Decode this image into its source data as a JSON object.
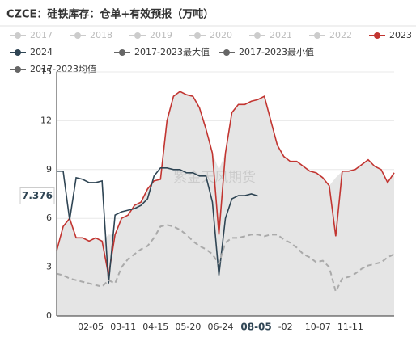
{
  "chart_data": {
    "type": "line",
    "title": "CZCE：硅铁库存：仓单+有效预报（万吨）",
    "watermark": "紫金天风期货",
    "categories": [
      null,
      null,
      null,
      null,
      null,
      "02-05",
      null,
      null,
      null,
      null,
      "03-11",
      null,
      null,
      null,
      null,
      "04-15",
      null,
      null,
      null,
      null,
      "05-20",
      null,
      null,
      null,
      null,
      "06-24",
      null,
      null,
      null,
      null,
      "08-05",
      null,
      null,
      null,
      null,
      "-02",
      null,
      null,
      null,
      null,
      "10-07",
      null,
      null,
      null,
      null,
      "11-11",
      null,
      null,
      null,
      null,
      null,
      null,
      null
    ],
    "series": [
      {
        "name": "2017",
        "color": "#cccccc",
        "visible": false
      },
      {
        "name": "2018",
        "color": "#cccccc",
        "visible": false
      },
      {
        "name": "2019",
        "color": "#cccccc",
        "visible": false
      },
      {
        "name": "2020",
        "color": "#cccccc",
        "visible": false
      },
      {
        "name": "2021",
        "color": "#cccccc",
        "visible": false
      },
      {
        "name": "2022",
        "color": "#cccccc",
        "visible": false
      },
      {
        "name": "2023",
        "color": "#c23531",
        "visible": true,
        "values": [
          4.0,
          5.5,
          6.0,
          4.8,
          4.8,
          4.6,
          4.8,
          4.6,
          2.5,
          5.0,
          6.0,
          6.2,
          6.8,
          7.0,
          7.8,
          8.3,
          8.4,
          12.0,
          13.5,
          13.8,
          13.6,
          13.5,
          12.8,
          11.5,
          10.0,
          5.0,
          10.0,
          12.5,
          13.0,
          13.0,
          13.2,
          13.3,
          13.5,
          12.0,
          10.5,
          9.8,
          9.5,
          9.5,
          9.2,
          8.9,
          8.8,
          8.5,
          8.0,
          4.9,
          8.9,
          8.9,
          9.0,
          9.3,
          9.6,
          9.2,
          9.0,
          8.2,
          8.8
        ]
      },
      {
        "name": "2024",
        "color": "#2f4554",
        "visible": true,
        "values": [
          8.9,
          8.9,
          5.9,
          8.5,
          8.4,
          8.2,
          8.2,
          8.3,
          2.0,
          6.2,
          6.4,
          6.5,
          6.6,
          6.8,
          7.2,
          8.6,
          9.1,
          9.1,
          9.0,
          9.0,
          8.8,
          8.8,
          8.6,
          8.6,
          7.0,
          2.5,
          6.0,
          7.2,
          7.4,
          7.4,
          7.5,
          7.376,
          null,
          null,
          null,
          null,
          null,
          null,
          null,
          null,
          null,
          null,
          null,
          null,
          null,
          null,
          null,
          null,
          null,
          null,
          null,
          null,
          null
        ]
      },
      {
        "name": "2017-2023最大值",
        "color": "#666666",
        "visible": true,
        "role": "max",
        "values": [
          4.0,
          5.5,
          6.0,
          4.8,
          4.8,
          4.6,
          4.8,
          4.6,
          5.0,
          5.0,
          6.0,
          6.2,
          6.8,
          7.0,
          7.8,
          8.3,
          8.4,
          12.0,
          13.5,
          13.8,
          13.6,
          13.5,
          12.8,
          11.5,
          10.0,
          9.0,
          10.0,
          12.5,
          13.0,
          13.0,
          13.2,
          13.3,
          13.5,
          12.0,
          10.5,
          9.8,
          9.5,
          9.5,
          9.2,
          8.9,
          8.8,
          8.5,
          8.0,
          8.5,
          8.9,
          8.9,
          9.0,
          9.3,
          9.6,
          9.2,
          9.0,
          8.2,
          8.8
        ]
      },
      {
        "name": "2017-2023最小值",
        "color": "#666666",
        "visible": true,
        "role": "min",
        "values": [
          0,
          0,
          0,
          0,
          0,
          0,
          0,
          0,
          0,
          0,
          0,
          0,
          0,
          0,
          0,
          0,
          0,
          0,
          0,
          0,
          0,
          0,
          0,
          0,
          0,
          0,
          0,
          0,
          0,
          0,
          0,
          0,
          0,
          0,
          0,
          0,
          0,
          0,
          0,
          0,
          0,
          0,
          0,
          0,
          0,
          0,
          0,
          0,
          0,
          0,
          0,
          0,
          0
        ]
      },
      {
        "name": "2017-2023均值",
        "color": "#666666",
        "visible": true,
        "role": "mean",
        "line_color": "#aaaaaa",
        "values": [
          2.6,
          2.5,
          2.3,
          2.2,
          2.1,
          2.0,
          1.9,
          1.8,
          2.2,
          2.0,
          3.0,
          3.5,
          3.8,
          4.1,
          4.3,
          4.8,
          5.5,
          5.6,
          5.5,
          5.3,
          5.0,
          4.6,
          4.3,
          4.1,
          3.8,
          3.2,
          4.5,
          4.8,
          4.8,
          4.9,
          5.0,
          5.0,
          4.9,
          5.0,
          5.0,
          4.7,
          4.5,
          4.2,
          3.8,
          3.6,
          3.3,
          3.4,
          3.0,
          1.5,
          2.3,
          2.4,
          2.6,
          2.9,
          3.1,
          3.2,
          3.3,
          3.6,
          3.8
        ]
      }
    ],
    "range_fill": "#e5e5e5",
    "ylim": [
      0,
      15
    ],
    "yticks": [
      0,
      3,
      6,
      9,
      12,
      15
    ],
    "grid": true,
    "axis_pointer": {
      "x": "08-05",
      "y": 7.376
    }
  }
}
